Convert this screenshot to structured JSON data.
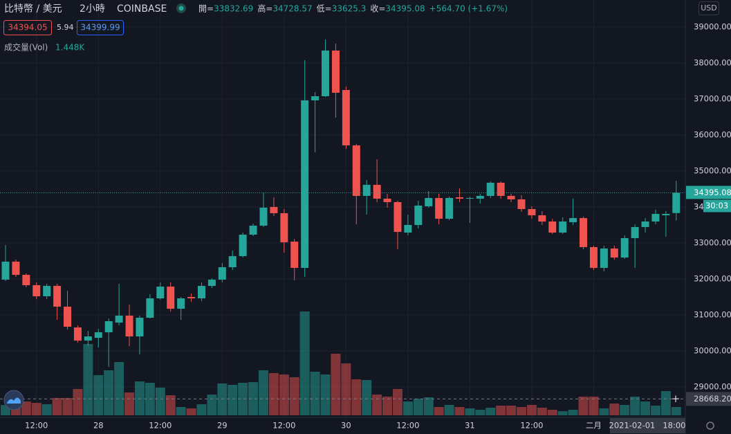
{
  "header": {
    "symbol": "比特幣 / 美元",
    "interval": "2小時",
    "exchange": "COINBASE",
    "ohlc": [
      {
        "label": "開=",
        "value": 33832.69
      },
      {
        "label": "高=",
        "value": 34728.57
      },
      {
        "label": "低=",
        "value": 33625.3
      },
      {
        "label": "收=",
        "value": 34395.08
      }
    ],
    "change": "+564.70 (+1.67%)",
    "bid": 34394.05,
    "spread": 5.94,
    "ask": 34399.99,
    "volume_name": "成交量(Vol)",
    "volume_readout": "1.448K",
    "currency": "USD"
  },
  "chart_data": {
    "type": "candlestick",
    "categories": [
      null,
      null,
      null,
      "12:00",
      null,
      null,
      null,
      null,
      null,
      "28",
      null,
      null,
      null,
      null,
      null,
      "12:00",
      null,
      null,
      null,
      null,
      null,
      "29",
      null,
      null,
      null,
      null,
      null,
      "12:00",
      null,
      null,
      null,
      null,
      null,
      "30",
      null,
      null,
      null,
      null,
      null,
      "12:00",
      null,
      null,
      null,
      null,
      null,
      "31",
      null,
      null,
      null,
      null,
      null,
      "12:00",
      null,
      null,
      null,
      null,
      null,
      "二月",
      null,
      null,
      null,
      null,
      null,
      null,
      null,
      null
    ],
    "open": [
      31981,
      32481,
      32115,
      31827,
      31519,
      31808,
      31231,
      30654,
      30288,
      30365,
      30519,
      30788,
      30981,
      30404,
      30923,
      31462,
      31788,
      31173,
      31500,
      31462,
      31808,
      31981,
      32327,
      32635,
      33231,
      33481,
      34000,
      33827,
      33038,
      32308,
      36962,
      37077,
      38346,
      37250,
      35712,
      34308,
      34615,
      34231,
      34135,
      33288,
      33500,
      34019,
      34250,
      33673,
      34269,
      34231,
      34231,
      34308,
      34673,
      34308,
      34212,
      33942,
      33769,
      33596,
      33288,
      33577,
      33692,
      32885,
      32308,
      32846,
      32596,
      33135,
      33442,
      33596,
      33769,
      33832.69
    ],
    "high": [
      32942,
      32538,
      32154,
      31904,
      31865,
      31865,
      31673,
      30712,
      30558,
      30615,
      30904,
      31865,
      31288,
      30981,
      31577,
      31904,
      31904,
      31500,
      31596,
      31904,
      32019,
      32442,
      32788,
      33288,
      33538,
      34404,
      34269,
      33942,
      33115,
      38077,
      37192,
      38654,
      38538,
      37346,
      35750,
      34750,
      35327,
      34365,
      34173,
      33788,
      34173,
      34442,
      34365,
      34288,
      34519,
      34288,
      34365,
      34712,
      34712,
      34365,
      34327,
      34019,
      33885,
      33673,
      33712,
      34231,
      33731,
      32923,
      32923,
      32923,
      33212,
      33519,
      33692,
      33923,
      33885,
      34728.57
    ],
    "low": [
      31942,
      32058,
      31769,
      31442,
      31442,
      30865,
      30596,
      30231,
      30135,
      30096,
      29558,
      30712,
      30135,
      29904,
      30904,
      31423,
      31096,
      30865,
      31365,
      31385,
      31750,
      31904,
      32250,
      32596,
      33192,
      33442,
      33750,
      32731,
      31962,
      32058,
      35519,
      37058,
      36481,
      35615,
      33519,
      33788,
      34135,
      33981,
      32827,
      33212,
      33404,
      33981,
      33519,
      33635,
      34135,
      33558,
      34096,
      34250,
      34231,
      34135,
      33865,
      33673,
      33500,
      33250,
      33250,
      33500,
      32827,
      32250,
      32212,
      32538,
      32558,
      32308,
      33288,
      33519,
      33173,
      33625.3
    ],
    "close": [
      32481,
      32115,
      31827,
      31519,
      31808,
      31231,
      30673,
      30288,
      30404,
      30519,
      30827,
      30981,
      30404,
      30923,
      31462,
      31788,
      31173,
      31462,
      31462,
      31808,
      31981,
      32327,
      32635,
      33231,
      33481,
      33981,
      33827,
      33019,
      32308,
      36962,
      37077,
      38346,
      37173,
      35712,
      34308,
      34615,
      34231,
      34135,
      33308,
      33500,
      34038,
      34250,
      33673,
      34250,
      34231,
      34250,
      34308,
      34673,
      34308,
      34212,
      33942,
      33769,
      33596,
      33288,
      33596,
      33692,
      32885,
      32308,
      32846,
      32596,
      33135,
      33442,
      33596,
      33808,
      33808,
      34395.08
    ],
    "volume": [
      1.81,
      2.05,
      2.41,
      2.17,
      1.93,
      3.02,
      3.02,
      4.59,
      12.43,
      7.0,
      7.85,
      9.29,
      3.98,
      5.91,
      5.67,
      4.83,
      3.5,
      1.45,
      1.21,
      1.93,
      3.62,
      5.55,
      5.31,
      5.67,
      5.79,
      7.85,
      7.36,
      7.12,
      6.64,
      18.1,
      7.6,
      7.12,
      10.74,
      9.05,
      6.28,
      6.16,
      3.62,
      3.26,
      4.59,
      2.41,
      2.9,
      3.14,
      1.45,
      1.81,
      1.45,
      1.21,
      0.97,
      1.33,
      1.69,
      1.69,
      1.45,
      1.81,
      1.33,
      0.97,
      0.72,
      0.97,
      3.26,
      3.26,
      1.21,
      2.05,
      1.81,
      3.26,
      2.41,
      1.69,
      4.22,
      1.448
    ],
    "up_color": "#26a69a",
    "down_color": "#ef5350",
    "ylim": [
      28155,
      39750
    ],
    "yticks": [
      {
        "value": 29000,
        "label": "29000.00"
      },
      {
        "value": 30000,
        "label": "30000.00"
      },
      {
        "value": 31000,
        "label": "31000.00"
      },
      {
        "value": 32000,
        "label": "32000.00"
      },
      {
        "value": 33000,
        "label": "33000.00"
      },
      {
        "value": 34000,
        "label": "34000.00"
      },
      {
        "value": 35000,
        "label": "35000.00"
      },
      {
        "value": 36000,
        "label": "36000.00"
      },
      {
        "value": 37000,
        "label": "37000.00"
      },
      {
        "value": 38000,
        "label": "38000.00"
      },
      {
        "value": 39000,
        "label": "39000.00"
      }
    ],
    "countdown": "30:03",
    "crosshair": {
      "price": {
        "value": 28668.2,
        "label": "28668.20"
      },
      "time": "2021-02-01   18:00"
    },
    "grid": true
  }
}
